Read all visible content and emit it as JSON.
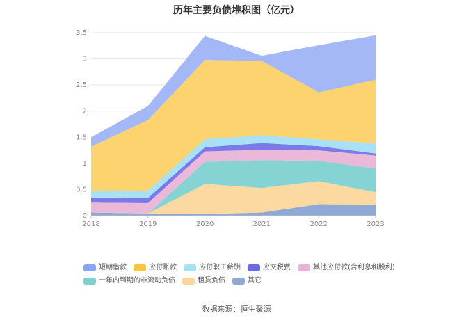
{
  "chart_data": {
    "type": "area",
    "stacked": true,
    "title": "历年主要负债堆积图（亿元）",
    "categories": [
      "2018",
      "2019",
      "2020",
      "2021",
      "2022",
      "2023"
    ],
    "y_ticks": [
      "0",
      "0.5",
      "1",
      "1.5",
      "2",
      "2.5",
      "3",
      "3.5"
    ],
    "ylim": [
      0,
      3.5
    ],
    "legend_position": "bottom",
    "series": [
      {
        "name": "其它",
        "color": "#8fa9d6",
        "values": [
          0.06,
          0.04,
          0.03,
          0.06,
          0.22,
          0.21
        ]
      },
      {
        "name": "租赁负债",
        "color": "#fcd9a0",
        "values": [
          0.0,
          0.0,
          0.58,
          0.47,
          0.44,
          0.24
        ]
      },
      {
        "name": "一年内到期的非流动负债",
        "color": "#85d3d3",
        "values": [
          0.0,
          0.0,
          0.42,
          0.53,
          0.39,
          0.45
        ]
      },
      {
        "name": "其他应付款(含利息和股利)",
        "color": "#eab8d8",
        "values": [
          0.19,
          0.2,
          0.2,
          0.2,
          0.2,
          0.25
        ]
      },
      {
        "name": "应交税费",
        "color": "#7a7ae8",
        "values": [
          0.1,
          0.1,
          0.08,
          0.13,
          0.08,
          0.04
        ]
      },
      {
        "name": "应付职工薪酬",
        "color": "#a8e0f5",
        "values": [
          0.12,
          0.14,
          0.15,
          0.15,
          0.13,
          0.19
        ]
      },
      {
        "name": "应付账款",
        "color": "#fdd370",
        "values": [
          0.85,
          1.35,
          1.52,
          1.42,
          0.9,
          1.22
        ]
      },
      {
        "name": "短期借款",
        "color": "#a4b8f8",
        "values": [
          0.18,
          0.27,
          0.46,
          0.1,
          0.9,
          0.85
        ]
      }
    ],
    "legend_order": [
      "短期借款",
      "应付账款",
      "应付职工薪酬",
      "应交税费",
      "其他应付款(含利息和股利)",
      "一年内到期的非流动负债",
      "租赁负债",
      "其它"
    ],
    "legend_colors": {
      "短期借款": "#8aa4f5",
      "应付账款": "#fbc23e",
      "应付职工薪酬": "#a8e0f5",
      "应交税费": "#6b6be6",
      "其他应付款(含利息和股利)": "#e7b3d6",
      "一年内到期的非流动负债": "#7fd0d0",
      "租赁负债": "#fcd49a",
      "其它": "#8ea8d8"
    }
  },
  "source": "数据来源：恒生聚源"
}
